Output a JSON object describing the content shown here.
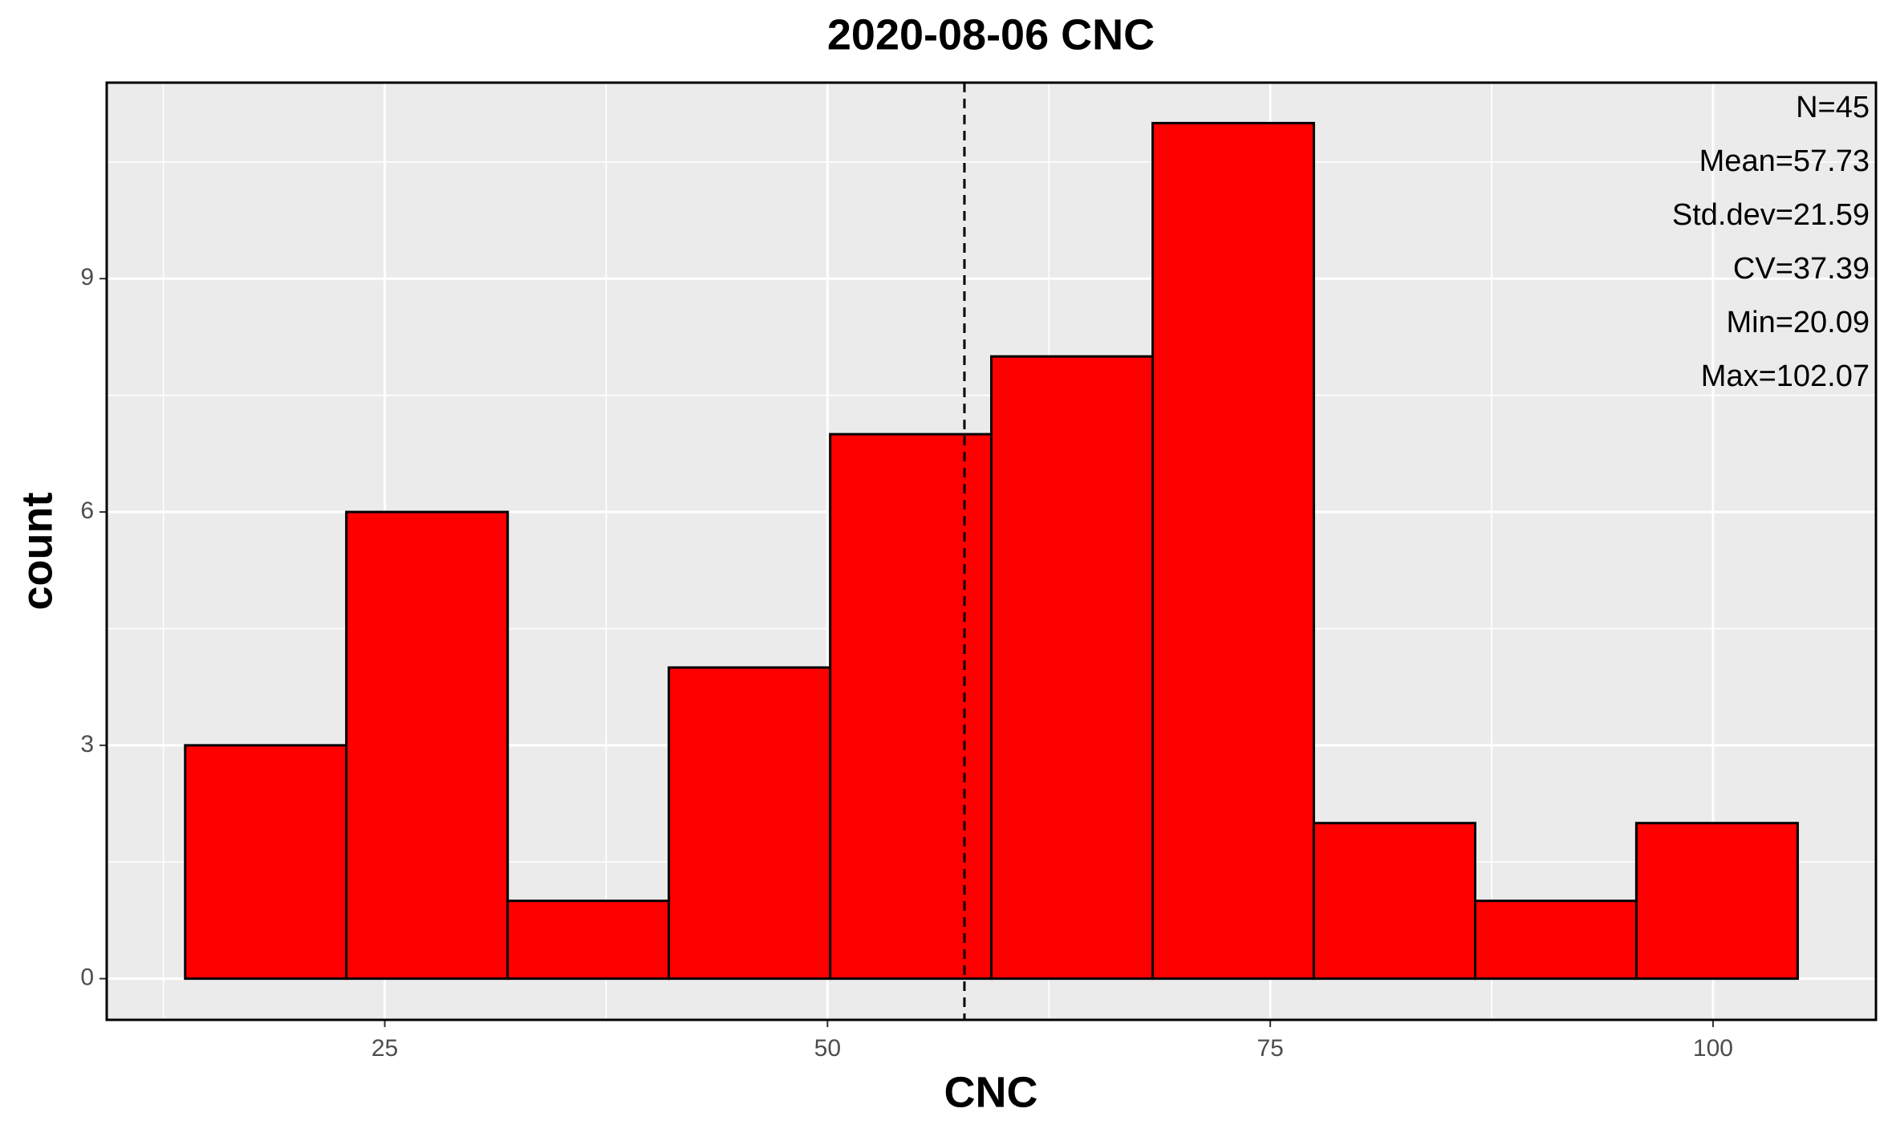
{
  "chart_data": {
    "type": "histogram",
    "title": "2020-08-06 CNC",
    "x_label": "CNC",
    "y_label": "count",
    "bins": [
      13.73,
      22.83,
      31.94,
      41.04,
      50.15,
      59.25,
      68.36,
      77.46,
      86.57,
      95.67,
      104.78
    ],
    "counts": [
      3,
      6,
      1,
      4,
      7,
      8,
      11,
      2,
      1,
      2
    ],
    "color": "#ff0000",
    "edge_color": "#000000",
    "mean_line": 57.73,
    "annotations": [
      "N=45",
      "Mean=57.73",
      "Std.dev=21.59",
      "CV=37.39",
      "Min=20.09",
      "Max=102.07"
    ],
    "xlim": [
      9.3,
      109.2
    ],
    "xticks": [
      25,
      50,
      75,
      100
    ],
    "ylim": [
      -0.53,
      11.52
    ],
    "yticks": [
      0,
      3,
      6,
      9
    ],
    "grid": true,
    "minor_grid": true
  }
}
